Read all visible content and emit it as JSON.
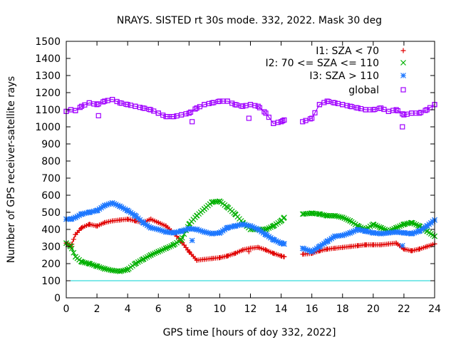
{
  "chart_data": {
    "type": "scatter",
    "title": "NRAYS. SISTED rt 30s mode. 332, 2022. Mask 30 deg",
    "xlabel": "GPS time [hours of doy 332, 2022]",
    "ylabel": "Number of GPS receiver-satellite rays",
    "xlim": [
      0,
      24
    ],
    "ylim": [
      0,
      1500
    ],
    "xticks": [
      0,
      2,
      4,
      6,
      8,
      10,
      12,
      14,
      16,
      18,
      20,
      22,
      24
    ],
    "xtick_labels": [
      "0",
      "2",
      "4",
      "6",
      "8",
      "10",
      "12",
      "14",
      "16",
      "18",
      "20",
      "22",
      "24"
    ],
    "yticks": [
      0,
      100,
      200,
      300,
      400,
      500,
      600,
      700,
      800,
      900,
      1000,
      1100,
      1200,
      1300,
      1400,
      1500
    ],
    "ytick_labels": [
      "0",
      "100",
      "200",
      "300",
      "400",
      "500",
      "600",
      "700",
      "800",
      "900",
      "1000",
      "1100",
      "1200",
      "1300",
      "1400",
      "1500"
    ],
    "legend_position": "top-right",
    "gap": [
      14.25,
      15.4
    ],
    "reference_line": {
      "y": 100,
      "color": "#00d0d0"
    },
    "series": [
      {
        "name": "I1: SZA < 70",
        "marker": "+",
        "color": "#e00000",
        "x": [
          0,
          0.3,
          0.6,
          1,
          1.5,
          2,
          2.5,
          3,
          3.5,
          4,
          4.5,
          5,
          5.5,
          6,
          6.5,
          7,
          7.5,
          8,
          8.5,
          9,
          9.5,
          10,
          10.5,
          11,
          11.5,
          12,
          12.5,
          13,
          13.5,
          14,
          14.2,
          15.4,
          16,
          16.5,
          17,
          17.5,
          18,
          18.5,
          19,
          19.5,
          20,
          20.5,
          21,
          21.5,
          22,
          22.5,
          23,
          23.5,
          24
        ],
        "values": [
          320,
          300,
          370,
          410,
          430,
          420,
          440,
          450,
          455,
          460,
          450,
          440,
          460,
          440,
          420,
          380,
          330,
          270,
          220,
          225,
          230,
          235,
          245,
          260,
          280,
          290,
          295,
          280,
          260,
          245,
          240,
          255,
          260,
          275,
          285,
          290,
          295,
          300,
          305,
          310,
          310,
          310,
          315,
          320,
          285,
          275,
          285,
          300,
          315
        ]
      },
      {
        "name": "I2: 70 <= SZA <= 110",
        "marker": "x",
        "color": "#00b000",
        "x": [
          0,
          0.3,
          0.6,
          1,
          1.5,
          2,
          2.5,
          3,
          3.5,
          4,
          4.5,
          5,
          5.5,
          6,
          6.5,
          7,
          7.5,
          8,
          8.5,
          9,
          9.5,
          10,
          10.5,
          11,
          11.5,
          12,
          12.5,
          13,
          13.5,
          14,
          14.2,
          15.4,
          16,
          16.5,
          17,
          17.5,
          18,
          18.5,
          19,
          19.5,
          20,
          20.5,
          21,
          21.5,
          22,
          22.5,
          23,
          23.5,
          24
        ],
        "values": [
          320,
          300,
          240,
          210,
          200,
          185,
          170,
          160,
          155,
          165,
          200,
          225,
          250,
          270,
          290,
          310,
          340,
          430,
          480,
          520,
          560,
          565,
          530,
          490,
          440,
          400,
          400,
          400,
          420,
          450,
          470,
          490,
          495,
          490,
          480,
          480,
          470,
          450,
          420,
          400,
          430,
          410,
          390,
          410,
          430,
          440,
          420,
          390,
          360
        ]
      },
      {
        "name": "I3: SZA > 110",
        "marker": "*",
        "color": "#1e78ff",
        "x": [
          0,
          0.3,
          0.6,
          1,
          1.5,
          2,
          2.5,
          3,
          3.5,
          4,
          4.5,
          5,
          5.5,
          6,
          6.5,
          7,
          7.5,
          8,
          8.5,
          9,
          9.5,
          10,
          10.5,
          11,
          11.5,
          12,
          12.5,
          13,
          13.5,
          14,
          14.2,
          15.4,
          16,
          16.5,
          17,
          17.5,
          18,
          18.5,
          19,
          19.5,
          20,
          20.5,
          21,
          21.5,
          22,
          22.5,
          23,
          23.5,
          24
        ],
        "values": [
          460,
          460,
          470,
          490,
          500,
          510,
          540,
          555,
          535,
          510,
          480,
          440,
          410,
          400,
          385,
          380,
          390,
          405,
          400,
          385,
          375,
          380,
          410,
          420,
          430,
          420,
          400,
          370,
          340,
          320,
          315,
          290,
          270,
          300,
          330,
          360,
          365,
          380,
          400,
          390,
          380,
          375,
          380,
          385,
          380,
          375,
          390,
          420,
          455
        ]
      },
      {
        "name": "global",
        "marker": "square",
        "color": "#a000ff",
        "x": [
          0,
          0.3,
          0.6,
          1,
          1.5,
          2,
          2.5,
          3,
          3.5,
          4,
          4.5,
          5,
          5.5,
          6,
          6.5,
          7,
          7.5,
          8,
          8.5,
          9,
          9.5,
          10,
          10.5,
          11,
          11.5,
          12,
          12.5,
          13,
          13.5,
          14,
          14.2,
          15.4,
          16,
          16.5,
          17,
          17.5,
          18,
          18.5,
          19,
          19.5,
          20,
          20.5,
          21,
          21.5,
          22,
          22.5,
          23,
          23.5,
          24
        ],
        "values": [
          1090,
          1100,
          1095,
          1120,
          1140,
          1130,
          1150,
          1160,
          1140,
          1130,
          1120,
          1110,
          1100,
          1080,
          1060,
          1060,
          1070,
          1080,
          1110,
          1130,
          1140,
          1150,
          1150,
          1130,
          1120,
          1130,
          1120,
          1080,
          1020,
          1030,
          1040,
          1030,
          1050,
          1130,
          1150,
          1140,
          1130,
          1120,
          1110,
          1100,
          1100,
          1110,
          1090,
          1100,
          1070,
          1080,
          1080,
          1100,
          1130
        ]
      }
    ],
    "outliers": [
      {
        "series": "global",
        "x": 2.1,
        "y": 1065
      },
      {
        "series": "global",
        "x": 8.2,
        "y": 1030
      },
      {
        "series": "global",
        "x": 11.9,
        "y": 1050
      },
      {
        "series": "global",
        "x": 21.9,
        "y": 1000
      },
      {
        "series": "I3: SZA > 110",
        "x": 8.2,
        "y": 335
      },
      {
        "series": "I3: SZA > 110",
        "x": 21.9,
        "y": 305
      },
      {
        "series": "I1: SZA < 70",
        "x": 11.9,
        "y": 270
      }
    ]
  }
}
